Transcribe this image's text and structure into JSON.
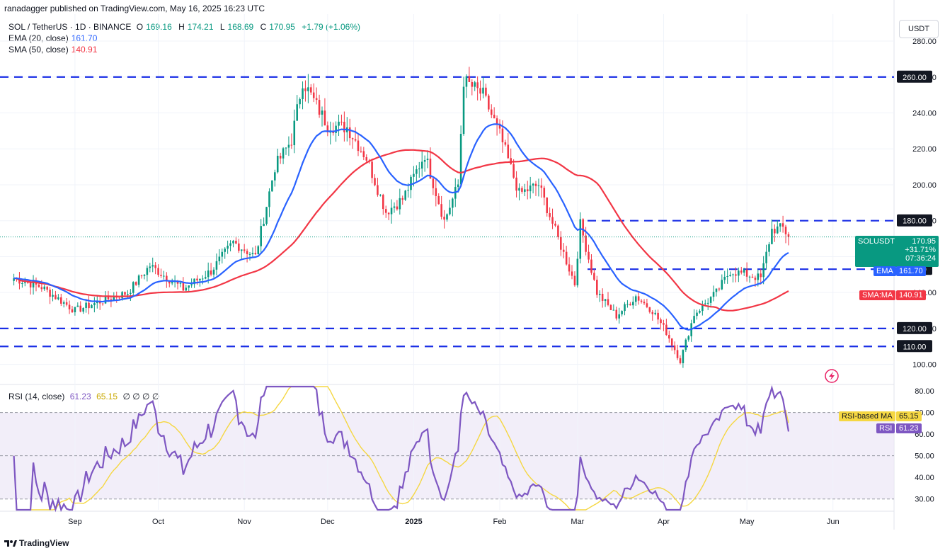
{
  "published_line": "ranadagger published on TradingView.com, May 16, 2025 16:23 UTC",
  "header": {
    "symbol": "SOL / TetherUS · 1D · BINANCE",
    "o_label": "O",
    "o_val": "169.16",
    "h_label": "H",
    "h_val": "174.21",
    "l_label": "L",
    "l_val": "168.69",
    "c_label": "C",
    "c_val": "170.95",
    "change": "+1.79 (+1.06%)",
    "ema_label": "EMA (20, close)",
    "ema_val": "161.70",
    "sma_label": "SMA (50, close)",
    "sma_val": "140.91"
  },
  "currency_button": "USDT",
  "rsi_header": {
    "label": "RSI (14, close)",
    "rsi_val": "61.23",
    "ma_val": "65.15",
    "extras": "∅ ∅ ∅ ∅"
  },
  "footer_brand": "TradingView",
  "price_labels": {
    "symbol": "SOLUSDT",
    "price": "170.95",
    "pct": "+31.71%",
    "countdown": "07:36:24",
    "ema_tag": "EMA",
    "ema_val": "161.70",
    "sma_tag": "SMA:MA",
    "sma_val": "140.91",
    "rsi_ma_tag": "RSI-based MA",
    "rsi_ma_val": "65.15",
    "rsi_tag": "RSI",
    "rsi_val": "61.23"
  },
  "colors": {
    "up": "#089981",
    "down": "#f23645",
    "ema": "#2962ff",
    "sma": "#f23645",
    "rsi": "#7e57c2",
    "rsi_ma": "#f5d742",
    "hline": "#1a2ee6"
  },
  "chart_data": [
    {
      "type": "candlestick",
      "title": "SOL / TetherUS · 1D · BINANCE",
      "ylim": [
        90,
        295
      ],
      "y_ticks": [
        "280.00",
        "260.00",
        "240.00",
        "220.00",
        "200.00",
        "180.00",
        "160.00",
        "140.00",
        "120.00",
        "100.00"
      ],
      "x_ticks": [
        "Sep",
        "Oct",
        "Nov",
        "Dec",
        "2025",
        "Feb",
        "Mar",
        "Apr",
        "May",
        "Jun"
      ],
      "horizontal_levels": [
        {
          "value": 260,
          "label": "260.00"
        },
        {
          "value": 180,
          "label": "180.00"
        },
        {
          "value": 153,
          "label": "153.00"
        },
        {
          "value": 120,
          "label": "120.00"
        },
        {
          "value": 110,
          "label": "110.00"
        }
      ],
      "close_path": [
        [
          "2024-08-10",
          148
        ],
        [
          "2024-08-20",
          143
        ],
        [
          "2024-09-01",
          130
        ],
        [
          "2024-09-10",
          135
        ],
        [
          "2024-09-20",
          140
        ],
        [
          "2024-09-28",
          155
        ],
        [
          "2024-10-10",
          142
        ],
        [
          "2024-10-20",
          152
        ],
        [
          "2024-10-28",
          168
        ],
        [
          "2024-11-05",
          160
        ],
        [
          "2024-11-12",
          210
        ],
        [
          "2024-11-18",
          225
        ],
        [
          "2024-11-22",
          258
        ],
        [
          "2024-12-01",
          233
        ],
        [
          "2024-12-08",
          232
        ],
        [
          "2024-12-15",
          215
        ],
        [
          "2024-12-22",
          185
        ],
        [
          "2024-12-28",
          192
        ],
        [
          "2025-01-05",
          217
        ],
        [
          "2025-01-12",
          180
        ],
        [
          "2025-01-17",
          200
        ],
        [
          "2025-01-19",
          258
        ],
        [
          "2025-01-26",
          250
        ],
        [
          "2025-02-01",
          228
        ],
        [
          "2025-02-08",
          195
        ],
        [
          "2025-02-15",
          200
        ],
        [
          "2025-02-22",
          170
        ],
        [
          "2025-02-28",
          145
        ],
        [
          "2025-03-02",
          178
        ],
        [
          "2025-03-08",
          140
        ],
        [
          "2025-03-15",
          127
        ],
        [
          "2025-03-22",
          138
        ],
        [
          "2025-03-28",
          130
        ],
        [
          "2025-04-02",
          118
        ],
        [
          "2025-04-07",
          102
        ],
        [
          "2025-04-12",
          128
        ],
        [
          "2025-04-20",
          140
        ],
        [
          "2025-04-25",
          152
        ],
        [
          "2025-05-01",
          150
        ],
        [
          "2025-05-06",
          148
        ],
        [
          "2025-05-10",
          175
        ],
        [
          "2025-05-14",
          176
        ],
        [
          "2025-05-16",
          170.95
        ]
      ],
      "ema": {
        "name": "EMA (20, close)",
        "last": 161.7
      },
      "sma": {
        "name": "SMA (50, close)",
        "last": 140.91
      }
    },
    {
      "type": "line",
      "title": "RSI (14, close)",
      "ylim": [
        25,
        82
      ],
      "y_ticks": [
        "80.00",
        "70.00",
        "60.00",
        "50.00",
        "40.00",
        "30.00"
      ],
      "levels": [
        70,
        50,
        30
      ],
      "series": [
        {
          "name": "RSI",
          "last": 61.23
        },
        {
          "name": "RSI-based MA",
          "last": 65.15
        }
      ]
    }
  ]
}
